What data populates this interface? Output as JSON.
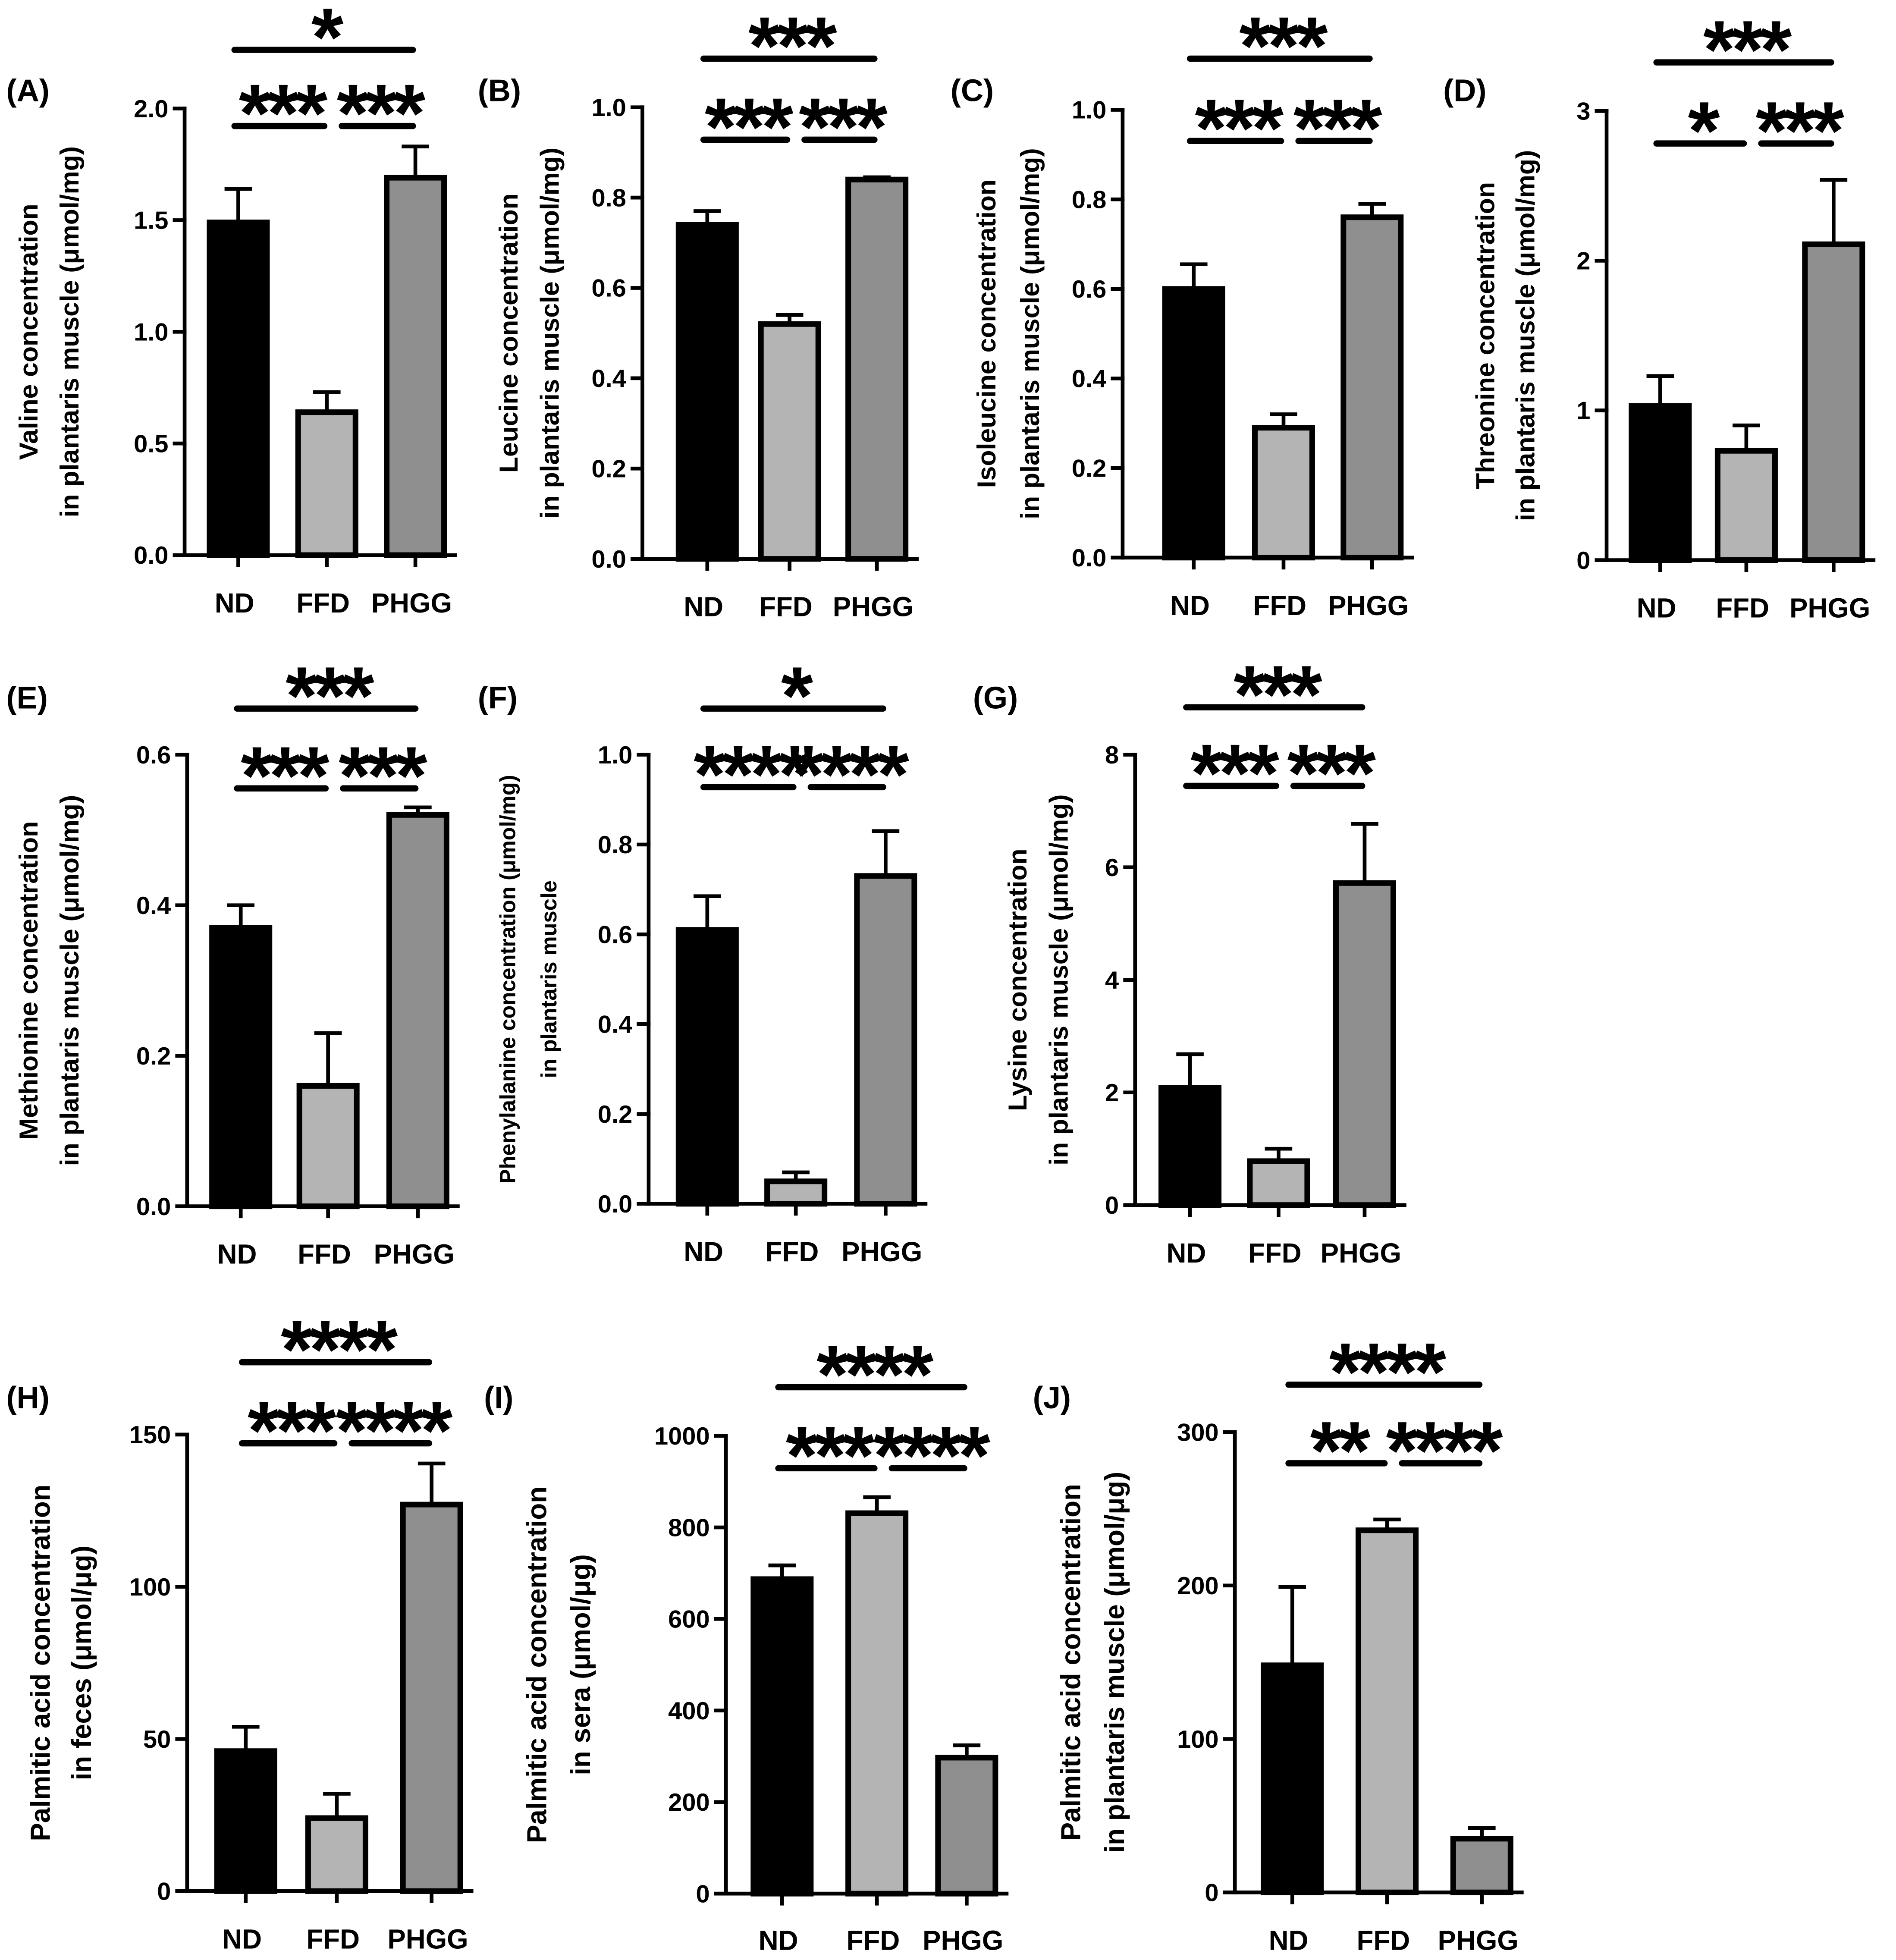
{
  "figure": {
    "background": "#ffffff"
  },
  "colors": {
    "ND": "#000000",
    "FFD": "#b4b4b4",
    "PHGG": "#8f8f8f",
    "outline": "#000000"
  },
  "chart_data": [
    {
      "panel": "(A)",
      "type": "bar",
      "categories": [
        "ND",
        "FFD",
        "PHGG"
      ],
      "values": [
        1.49,
        0.64,
        1.69
      ],
      "errors": [
        0.15,
        0.09,
        0.14
      ],
      "ylabel": [
        "Valine concentration",
        "in plantaris muscle (μmol/mg)"
      ],
      "yticks": [
        "0.0",
        "0.5",
        "1.0",
        "1.5",
        "2.0"
      ],
      "ylim": [
        0,
        2.0
      ],
      "significance": [
        {
          "pair": [
            0,
            2
          ],
          "label": "*"
        },
        {
          "pair": [
            0,
            1
          ],
          "label": "***"
        },
        {
          "pair": [
            1,
            2
          ],
          "label": "***"
        }
      ]
    },
    {
      "panel": "(B)",
      "type": "bar",
      "categories": [
        "ND",
        "FFD",
        "PHGG"
      ],
      "values": [
        0.74,
        0.52,
        0.84
      ],
      "errors": [
        0.03,
        0.02,
        0.005
      ],
      "ylabel": [
        "Leucine concentration",
        "in plantaris muscle (μmol/mg)"
      ],
      "yticks": [
        "0.0",
        "0.2",
        "0.4",
        "0.6",
        "0.8",
        "1.0"
      ],
      "ylim": [
        0,
        1.0
      ],
      "significance": [
        {
          "pair": [
            0,
            2
          ],
          "label": "***"
        },
        {
          "pair": [
            0,
            1
          ],
          "label": "***"
        },
        {
          "pair": [
            1,
            2
          ],
          "label": "***"
        }
      ]
    },
    {
      "panel": "(C)",
      "type": "bar",
      "categories": [
        "ND",
        "FFD",
        "PHGG"
      ],
      "values": [
        0.6,
        0.29,
        0.76
      ],
      "errors": [
        0.055,
        0.03,
        0.03
      ],
      "ylabel": [
        "Isoleucine concentration",
        "in plantaris muscle (μmol/mg)"
      ],
      "yticks": [
        "0.0",
        "0.2",
        "0.4",
        "0.6",
        "0.8",
        "1.0"
      ],
      "ylim": [
        0,
        1.0
      ],
      "significance": [
        {
          "pair": [
            0,
            2
          ],
          "label": "***"
        },
        {
          "pair": [
            0,
            1
          ],
          "label": "***"
        },
        {
          "pair": [
            1,
            2
          ],
          "label": "***"
        }
      ]
    },
    {
      "panel": "(D)",
      "type": "bar",
      "categories": [
        "ND",
        "FFD",
        "PHGG"
      ],
      "values": [
        1.03,
        0.73,
        2.11
      ],
      "errors": [
        0.2,
        0.17,
        0.43
      ],
      "ylabel": [
        "Threonine concentration",
        "in plantaris muscle (μmol/mg)"
      ],
      "yticks": [
        "0",
        "1",
        "2",
        "3"
      ],
      "ylim": [
        0,
        3
      ],
      "significance": [
        {
          "pair": [
            0,
            2
          ],
          "label": "***"
        },
        {
          "pair": [
            0,
            1
          ],
          "label": "*"
        },
        {
          "pair": [
            1,
            2
          ],
          "label": "***"
        }
      ]
    },
    {
      "panel": "(E)",
      "type": "bar",
      "categories": [
        "ND",
        "FFD",
        "PHGG"
      ],
      "values": [
        0.37,
        0.16,
        0.52
      ],
      "errors": [
        0.03,
        0.07,
        0.01
      ],
      "ylabel": [
        "Methionine concentration",
        "in plantaris muscle (μmol/mg)"
      ],
      "yticks": [
        "0.0",
        "0.2",
        "0.4",
        "0.6"
      ],
      "ylim": [
        0,
        0.6
      ],
      "significance": [
        {
          "pair": [
            0,
            2
          ],
          "label": "***"
        },
        {
          "pair": [
            0,
            1
          ],
          "label": "***"
        },
        {
          "pair": [
            1,
            2
          ],
          "label": "***"
        }
      ]
    },
    {
      "panel": "(F)",
      "type": "bar",
      "categories": [
        "ND",
        "FFD",
        "PHGG"
      ],
      "values": [
        0.61,
        0.05,
        0.73
      ],
      "errors": [
        0.075,
        0.02,
        0.1
      ],
      "ylabel": [
        "Phenylalanine concentration (μmol/mg)",
        "in plantaris muscle"
      ],
      "yticks": [
        "0.0",
        "0.2",
        "0.4",
        "0.6",
        "0.8",
        "1.0"
      ],
      "ylim": [
        0,
        1.0
      ],
      "significance": [
        {
          "pair": [
            0,
            2
          ],
          "label": "*"
        },
        {
          "pair": [
            0,
            1
          ],
          "label": "****"
        },
        {
          "pair": [
            1,
            2
          ],
          "label": "****"
        }
      ]
    },
    {
      "panel": "(G)",
      "type": "bar",
      "categories": [
        "ND",
        "FFD",
        "PHGG"
      ],
      "values": [
        2.08,
        0.78,
        5.72
      ],
      "errors": [
        0.6,
        0.22,
        1.05
      ],
      "ylabel": [
        "Lysine concentration",
        "in plantaris muscle (μmol/mg)"
      ],
      "yticks": [
        "0",
        "2",
        "4",
        "6",
        "8"
      ],
      "ylim": [
        0,
        8
      ],
      "significance": [
        {
          "pair": [
            0,
            2
          ],
          "label": "***"
        },
        {
          "pair": [
            0,
            1
          ],
          "label": "***"
        },
        {
          "pair": [
            1,
            2
          ],
          "label": "***"
        }
      ]
    },
    {
      "panel": "(H)",
      "type": "bar",
      "categories": [
        "ND",
        "FFD",
        "PHGG"
      ],
      "values": [
        46,
        24,
        127
      ],
      "errors": [
        8,
        8,
        13.5
      ],
      "ylabel": [
        "Palmitic acid concentration",
        "in feces (μmol/μg)"
      ],
      "yticks": [
        "0",
        "50",
        "100",
        "150"
      ],
      "ylim": [
        0,
        150
      ],
      "significance": [
        {
          "pair": [
            0,
            2
          ],
          "label": "****"
        },
        {
          "pair": [
            0,
            1
          ],
          "label": "***"
        },
        {
          "pair": [
            1,
            2
          ],
          "label": "****"
        }
      ]
    },
    {
      "panel": "(I)",
      "type": "bar",
      "categories": [
        "ND",
        "FFD",
        "PHGG"
      ],
      "values": [
        687,
        831,
        297
      ],
      "errors": [
        30,
        35,
        27
      ],
      "ylabel": [
        "Palmitic acid concentration",
        "in sera (μmol/μg)"
      ],
      "yticks": [
        "0",
        "200",
        "400",
        "600",
        "800",
        "1000"
      ],
      "ylim": [
        0,
        1000
      ],
      "significance": [
        {
          "pair": [
            0,
            2
          ],
          "label": "****"
        },
        {
          "pair": [
            0,
            1
          ],
          "label": "***"
        },
        {
          "pair": [
            1,
            2
          ],
          "label": "****"
        }
      ]
    },
    {
      "panel": "(J)",
      "type": "bar",
      "categories": [
        "ND",
        "FFD",
        "PHGG"
      ],
      "values": [
        148,
        236,
        35
      ],
      "errors": [
        51,
        7,
        7
      ],
      "ylabel": [
        "Palmitic acid concentration",
        "in plantaris muscle (μmol/μg)"
      ],
      "yticks": [
        "0",
        "100",
        "200",
        "300"
      ],
      "ylim": [
        0,
        300
      ],
      "significance": [
        {
          "pair": [
            0,
            2
          ],
          "label": "****"
        },
        {
          "pair": [
            0,
            1
          ],
          "label": "**"
        },
        {
          "pair": [
            1,
            2
          ],
          "label": "****"
        }
      ]
    }
  ]
}
